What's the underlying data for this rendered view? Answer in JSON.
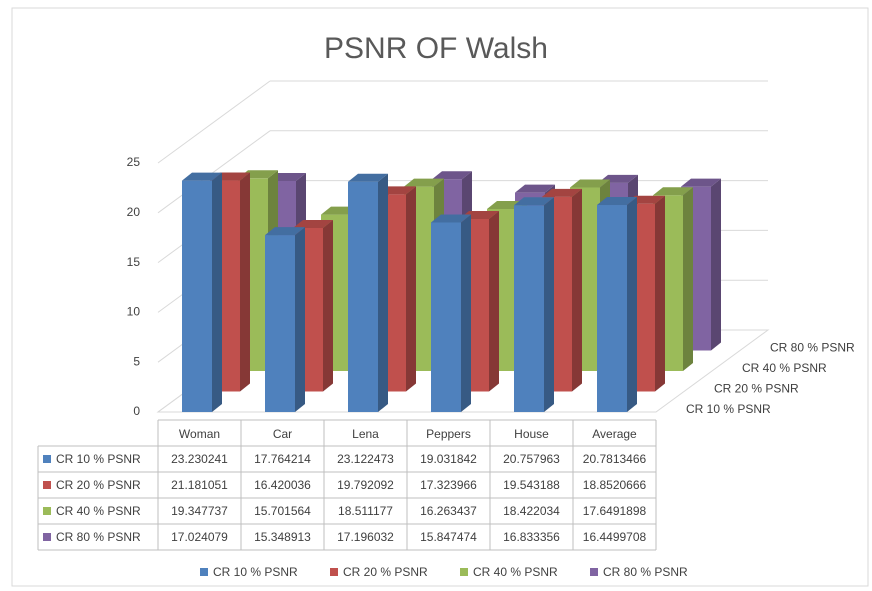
{
  "chart_data": {
    "type": "bar3d",
    "title": "PSNR OF Walsh",
    "categories": [
      "Woman",
      "Car",
      "Lena",
      "Peppers",
      "House",
      "Average"
    ],
    "series": [
      {
        "name": "CR 10 % PSNR",
        "color": "#4f81bd",
        "values": [
          23.230241,
          17.764214,
          23.122473,
          19.031842,
          20.757963,
          20.7813466
        ]
      },
      {
        "name": "CR 20 % PSNR",
        "color": "#c0504d",
        "values": [
          21.181051,
          16.420036,
          19.792092,
          17.323966,
          19.543188,
          18.8520666
        ]
      },
      {
        "name": "CR 40 % PSNR",
        "color": "#9bbb59",
        "values": [
          19.347737,
          15.701564,
          18.511177,
          16.263437,
          18.422034,
          17.6491898
        ]
      },
      {
        "name": "CR 80 % PSNR",
        "color": "#8064a2",
        "values": [
          17.024079,
          15.348913,
          17.196032,
          15.847474,
          16.833356,
          16.4499708
        ]
      }
    ],
    "ylim": [
      0,
      25
    ],
    "yticks": [
      0,
      5,
      10,
      15,
      20,
      25
    ],
    "grid": true,
    "legend": "bottom"
  }
}
